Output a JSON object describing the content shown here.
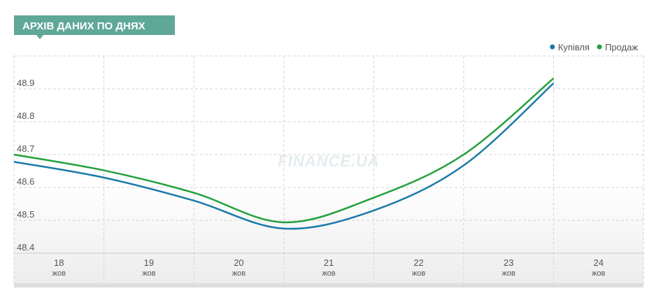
{
  "chart_data": {
    "type": "line",
    "title": "АРХІВ ДАНИХ ПО ДНЯХ",
    "watermark": "FINANCE.UA",
    "x": [
      18,
      19,
      20,
      21,
      22,
      23,
      24
    ],
    "series": [
      {
        "name": "Купівля",
        "color": "#1a7aa8",
        "values": [
          48.678,
          48.63,
          48.56,
          48.475,
          48.53,
          48.667,
          48.917
        ]
      },
      {
        "name": "Продаж",
        "color": "#23a03c",
        "values": [
          48.7,
          48.652,
          48.584,
          48.494,
          48.569,
          48.7,
          48.932
        ]
      }
    ],
    "xlim": [
      18,
      25
    ],
    "xticks": [
      18,
      19,
      20,
      21,
      22,
      23,
      24
    ],
    "x_month": "жов",
    "ylim": [
      48.4,
      49.0
    ],
    "yticks": [
      48.4,
      48.5,
      48.6,
      48.7,
      48.8,
      48.9
    ],
    "grid": true,
    "legend": "top-right"
  }
}
